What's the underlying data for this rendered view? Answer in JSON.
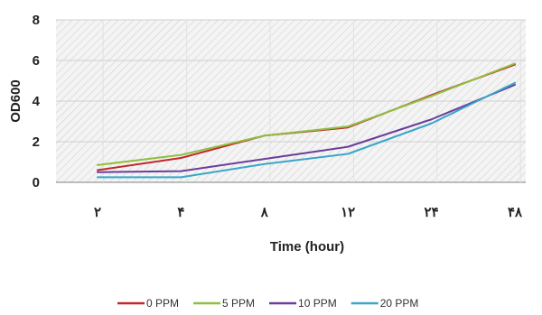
{
  "chart_data": {
    "type": "line",
    "xlabel": "Time (hour)",
    "ylabel": "OD600",
    "categories": [
      "۲",
      "۴",
      "۸",
      "۱۲",
      "۲۴",
      "۴۸"
    ],
    "ylim": [
      0,
      8
    ],
    "yticks": [
      "0",
      "2",
      "4",
      "6",
      "8"
    ],
    "grid": true,
    "legend_position": "bottom",
    "series": [
      {
        "name": "0 PPM",
        "color": "#c0282d",
        "values": [
          0.6,
          1.2,
          2.3,
          2.7,
          4.3,
          5.8
        ]
      },
      {
        "name": "5 PPM",
        "color": "#8fbf3f",
        "values": [
          0.85,
          1.35,
          2.3,
          2.75,
          4.25,
          5.85
        ]
      },
      {
        "name": "10 PPM",
        "color": "#6a3d9a",
        "values": [
          0.5,
          0.55,
          1.15,
          1.75,
          3.1,
          4.8
        ]
      },
      {
        "name": "20 PPM",
        "color": "#3aa6c9",
        "values": [
          0.25,
          0.25,
          0.9,
          1.4,
          2.9,
          4.9
        ]
      }
    ]
  }
}
